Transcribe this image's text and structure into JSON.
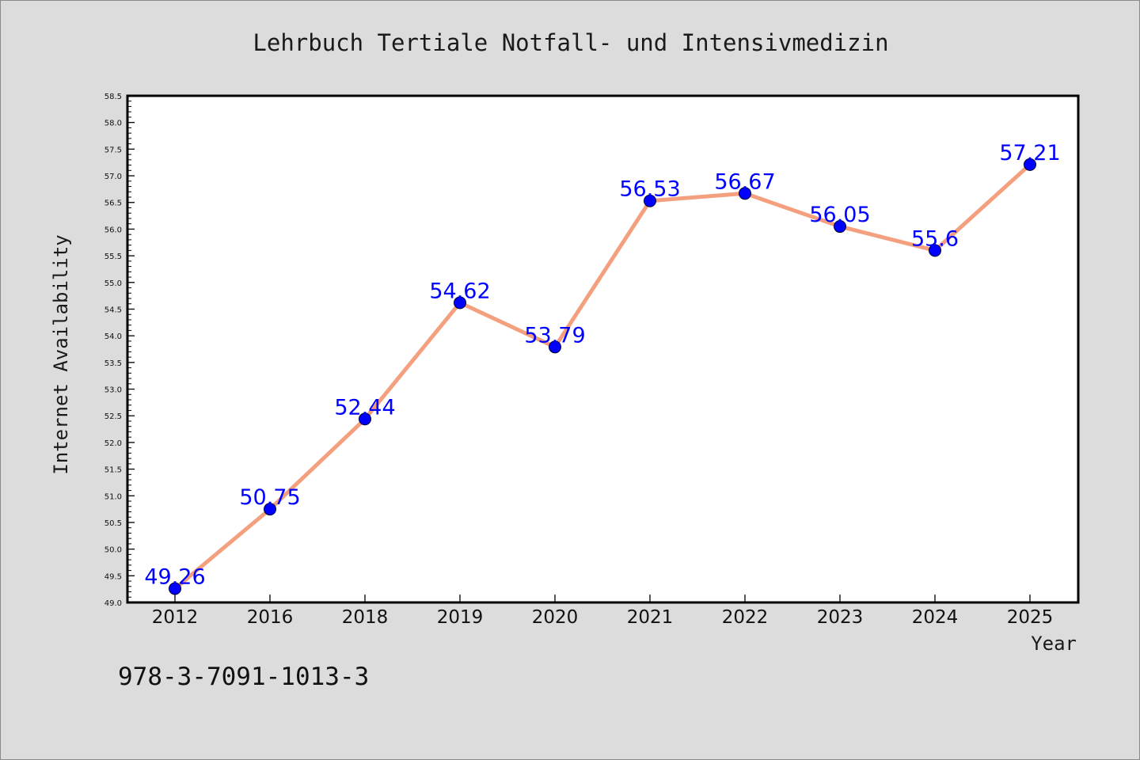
{
  "chart_data": {
    "type": "line",
    "title": "Lehrbuch Tertiale Notfall- und Intensivmedizin",
    "xlabel": "Year",
    "ylabel": "Internet Availability",
    "categories": [
      "2012",
      "2016",
      "2018",
      "2019",
      "2020",
      "2021",
      "2022",
      "2023",
      "2024",
      "2025"
    ],
    "series": [
      {
        "values": [
          49.26,
          50.75,
          52.44,
          54.62,
          53.79,
          56.53,
          56.67,
          56.05,
          55.6,
          57.21
        ],
        "labels": [
          "49.26",
          "50.75",
          "52.44",
          "54.62",
          "53.79",
          "56.53",
          "56.67",
          "56.05",
          "55.6",
          "57.21"
        ]
      }
    ],
    "ylim": [
      49.0,
      58.5
    ],
    "ytick_step": 0.5,
    "grid": false,
    "legend": "none",
    "colors": {
      "line": "#f4a07e",
      "marker": "#0000ff",
      "data_label": "#0000ff",
      "plot_background": "#ffffff",
      "figure_background": "#dcdcdc"
    }
  },
  "footer": {
    "isbn": "978-3-7091-1013-3"
  }
}
